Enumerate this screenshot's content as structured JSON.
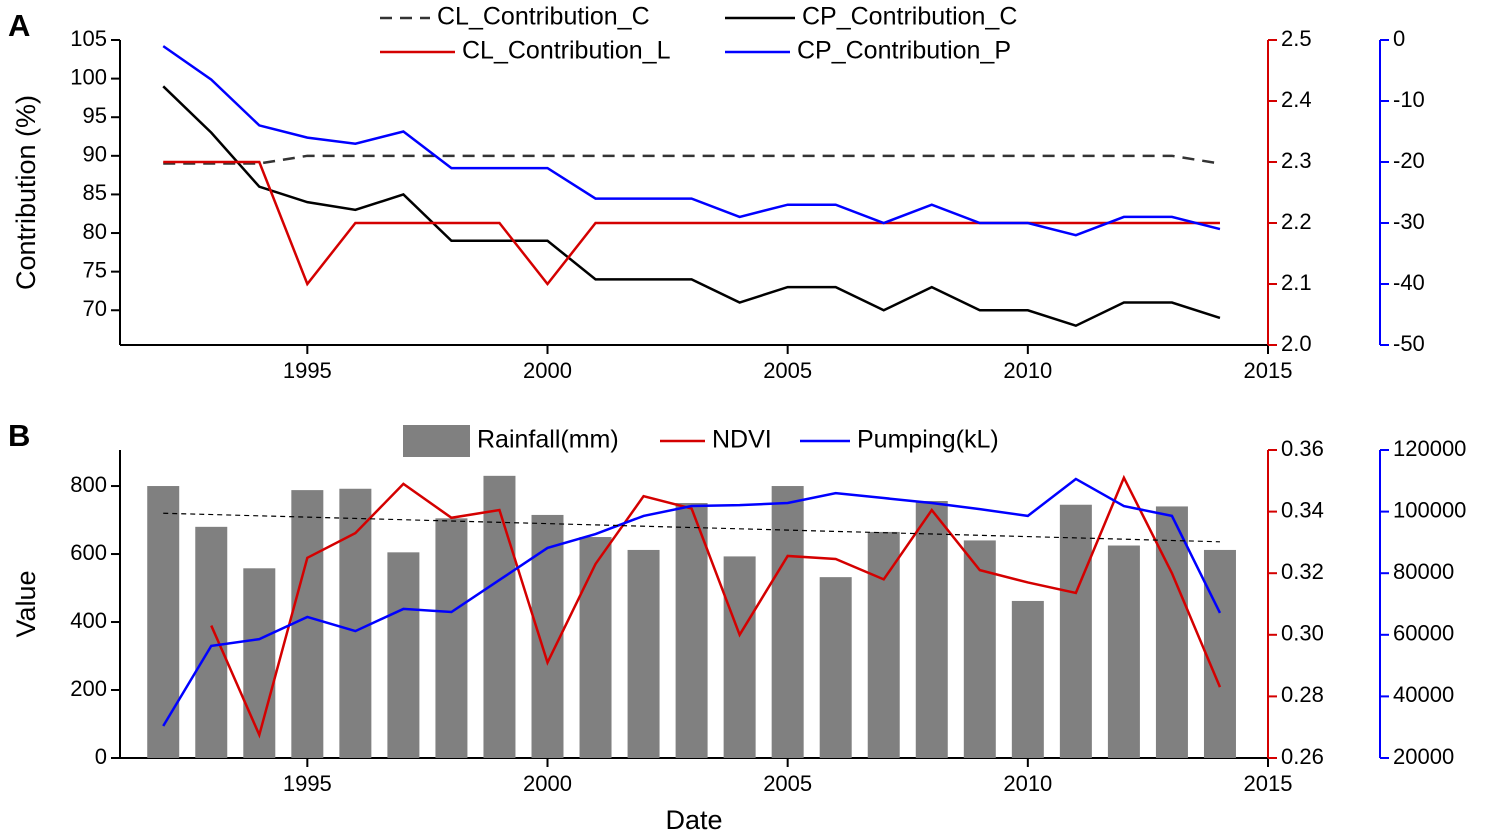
{
  "chart_data": [
    {
      "type": "line",
      "label": "A",
      "ylabel": "Contribution (%)",
      "x": [
        1992,
        1993,
        1994,
        1995,
        1996,
        1997,
        1998,
        1999,
        2000,
        2001,
        2002,
        2003,
        2004,
        2005,
        2006,
        2007,
        2008,
        2009,
        2010,
        2011,
        2012,
        2013,
        2014
      ],
      "xlim": [
        1991.1,
        2015
      ],
      "xticks": [
        1995,
        2000,
        2005,
        2010,
        2015
      ],
      "ylim": [
        65.5,
        105
      ],
      "yticks": [
        70,
        75,
        80,
        85,
        90,
        95,
        100,
        105
      ],
      "y2lim": [
        2.0,
        2.5
      ],
      "y2ticks": [
        {
          "value": 2.0,
          "label": "2.0"
        },
        2.1,
        2.2,
        2.3,
        2.4,
        2.5
      ],
      "y2color": "#d40000",
      "y3lim": [
        -50,
        0
      ],
      "y3ticks": [
        -50,
        -40,
        -30,
        -20,
        -10,
        0
      ],
      "y3color": "#0000ff",
      "series": [
        {
          "name": "CL_Contribution_C",
          "type": "line",
          "linestyle": "dashed",
          "color": "#333333",
          "axis": "y",
          "values": [
            89,
            89,
            89,
            90,
            90,
            90,
            90,
            90,
            90,
            90,
            90,
            90,
            90,
            90,
            90,
            90,
            90,
            90,
            90,
            90,
            90,
            90,
            89
          ]
        },
        {
          "name": "CP_Contribution_C",
          "type": "line",
          "color": "#000000",
          "axis": "y",
          "values": [
            99,
            93,
            86,
            84,
            83,
            85,
            79,
            79,
            79,
            74,
            74,
            74,
            71,
            73,
            73,
            70,
            73,
            70,
            70,
            68,
            71,
            71,
            69
          ]
        },
        {
          "name": "CL_Contribution_L",
          "type": "line",
          "color": "#d40000",
          "axis": "y2",
          "values": [
            2.3,
            2.3,
            2.3,
            2.1,
            2.2,
            2.2,
            2.2,
            2.2,
            2.1,
            2.2,
            2.2,
            2.2,
            2.2,
            2.2,
            2.2,
            2.2,
            2.2,
            2.2,
            2.2,
            2.2,
            2.2,
            2.2,
            2.2
          ]
        },
        {
          "name": "CP_Contribution_P",
          "type": "line",
          "color": "#0000ff",
          "axis": "y3",
          "values": [
            -1,
            -6.5,
            -14,
            -16,
            -17,
            -15,
            -21,
            -21,
            -21,
            -26,
            -26,
            -26,
            -29,
            -27,
            -27,
            -30,
            -27,
            -30,
            -30,
            -32,
            -29,
            -29,
            -31
          ]
        }
      ]
    },
    {
      "type": "bar_line",
      "label": "B",
      "ylabel": "Value",
      "xlabel": "Date",
      "x": [
        1992,
        1993,
        1994,
        1995,
        1996,
        1997,
        1998,
        1999,
        2000,
        2001,
        2002,
        2003,
        2004,
        2005,
        2006,
        2007,
        2008,
        2009,
        2010,
        2011,
        2012,
        2013,
        2014
      ],
      "xlim": [
        1991.1,
        2015
      ],
      "xticks": [
        1995,
        2000,
        2005,
        2010,
        2015
      ],
      "ylim": [
        0,
        906
      ],
      "yticks": [
        0,
        200,
        400,
        600,
        800
      ],
      "y2lim": [
        0.26,
        0.36
      ],
      "y2ticks": [
        0.26,
        0.28,
        {
          "value": 0.3,
          "label": "0.30"
        },
        0.32,
        0.34,
        0.36
      ],
      "y2color": "#d40000",
      "y3lim": [
        20000,
        120000
      ],
      "y3ticks": [
        20000,
        40000,
        60000,
        80000,
        100000,
        120000
      ],
      "y3color": "#0000ff",
      "series": [
        {
          "name": "Rainfall(mm)",
          "type": "bar",
          "color": "#808080",
          "axis": "y",
          "values": [
            800,
            680,
            558,
            788,
            792,
            605,
            705,
            830,
            715,
            650,
            612,
            750,
            593,
            800,
            532,
            665,
            756,
            640,
            462,
            745,
            625,
            740,
            612
          ]
        },
        {
          "name": "NDVI",
          "type": "line",
          "color": "#d40000",
          "axis": "y2",
          "values": [
            null,
            0.303,
            0.2675,
            0.325,
            0.333,
            0.349,
            0.338,
            0.3405,
            0.291,
            0.323,
            0.345,
            0.341,
            0.3,
            0.3256,
            0.3246,
            0.318,
            0.3405,
            0.321,
            0.317,
            0.3136,
            0.351,
            0.32,
            0.283
          ]
        },
        {
          "name": "Pumping(kL)",
          "type": "line",
          "color": "#0000ff",
          "axis": "y3",
          "values": [
            30400,
            56400,
            58600,
            65800,
            61200,
            68400,
            67400,
            77800,
            88200,
            92700,
            98600,
            101800,
            102100,
            102800,
            106000,
            104400,
            102800,
            100800,
            98600,
            110600,
            101800,
            98600,
            67100
          ]
        }
      ],
      "trend": {
        "x": [
          1992,
          2014
        ],
        "values": [
          720,
          636
        ],
        "color": "#000000"
      }
    }
  ]
}
